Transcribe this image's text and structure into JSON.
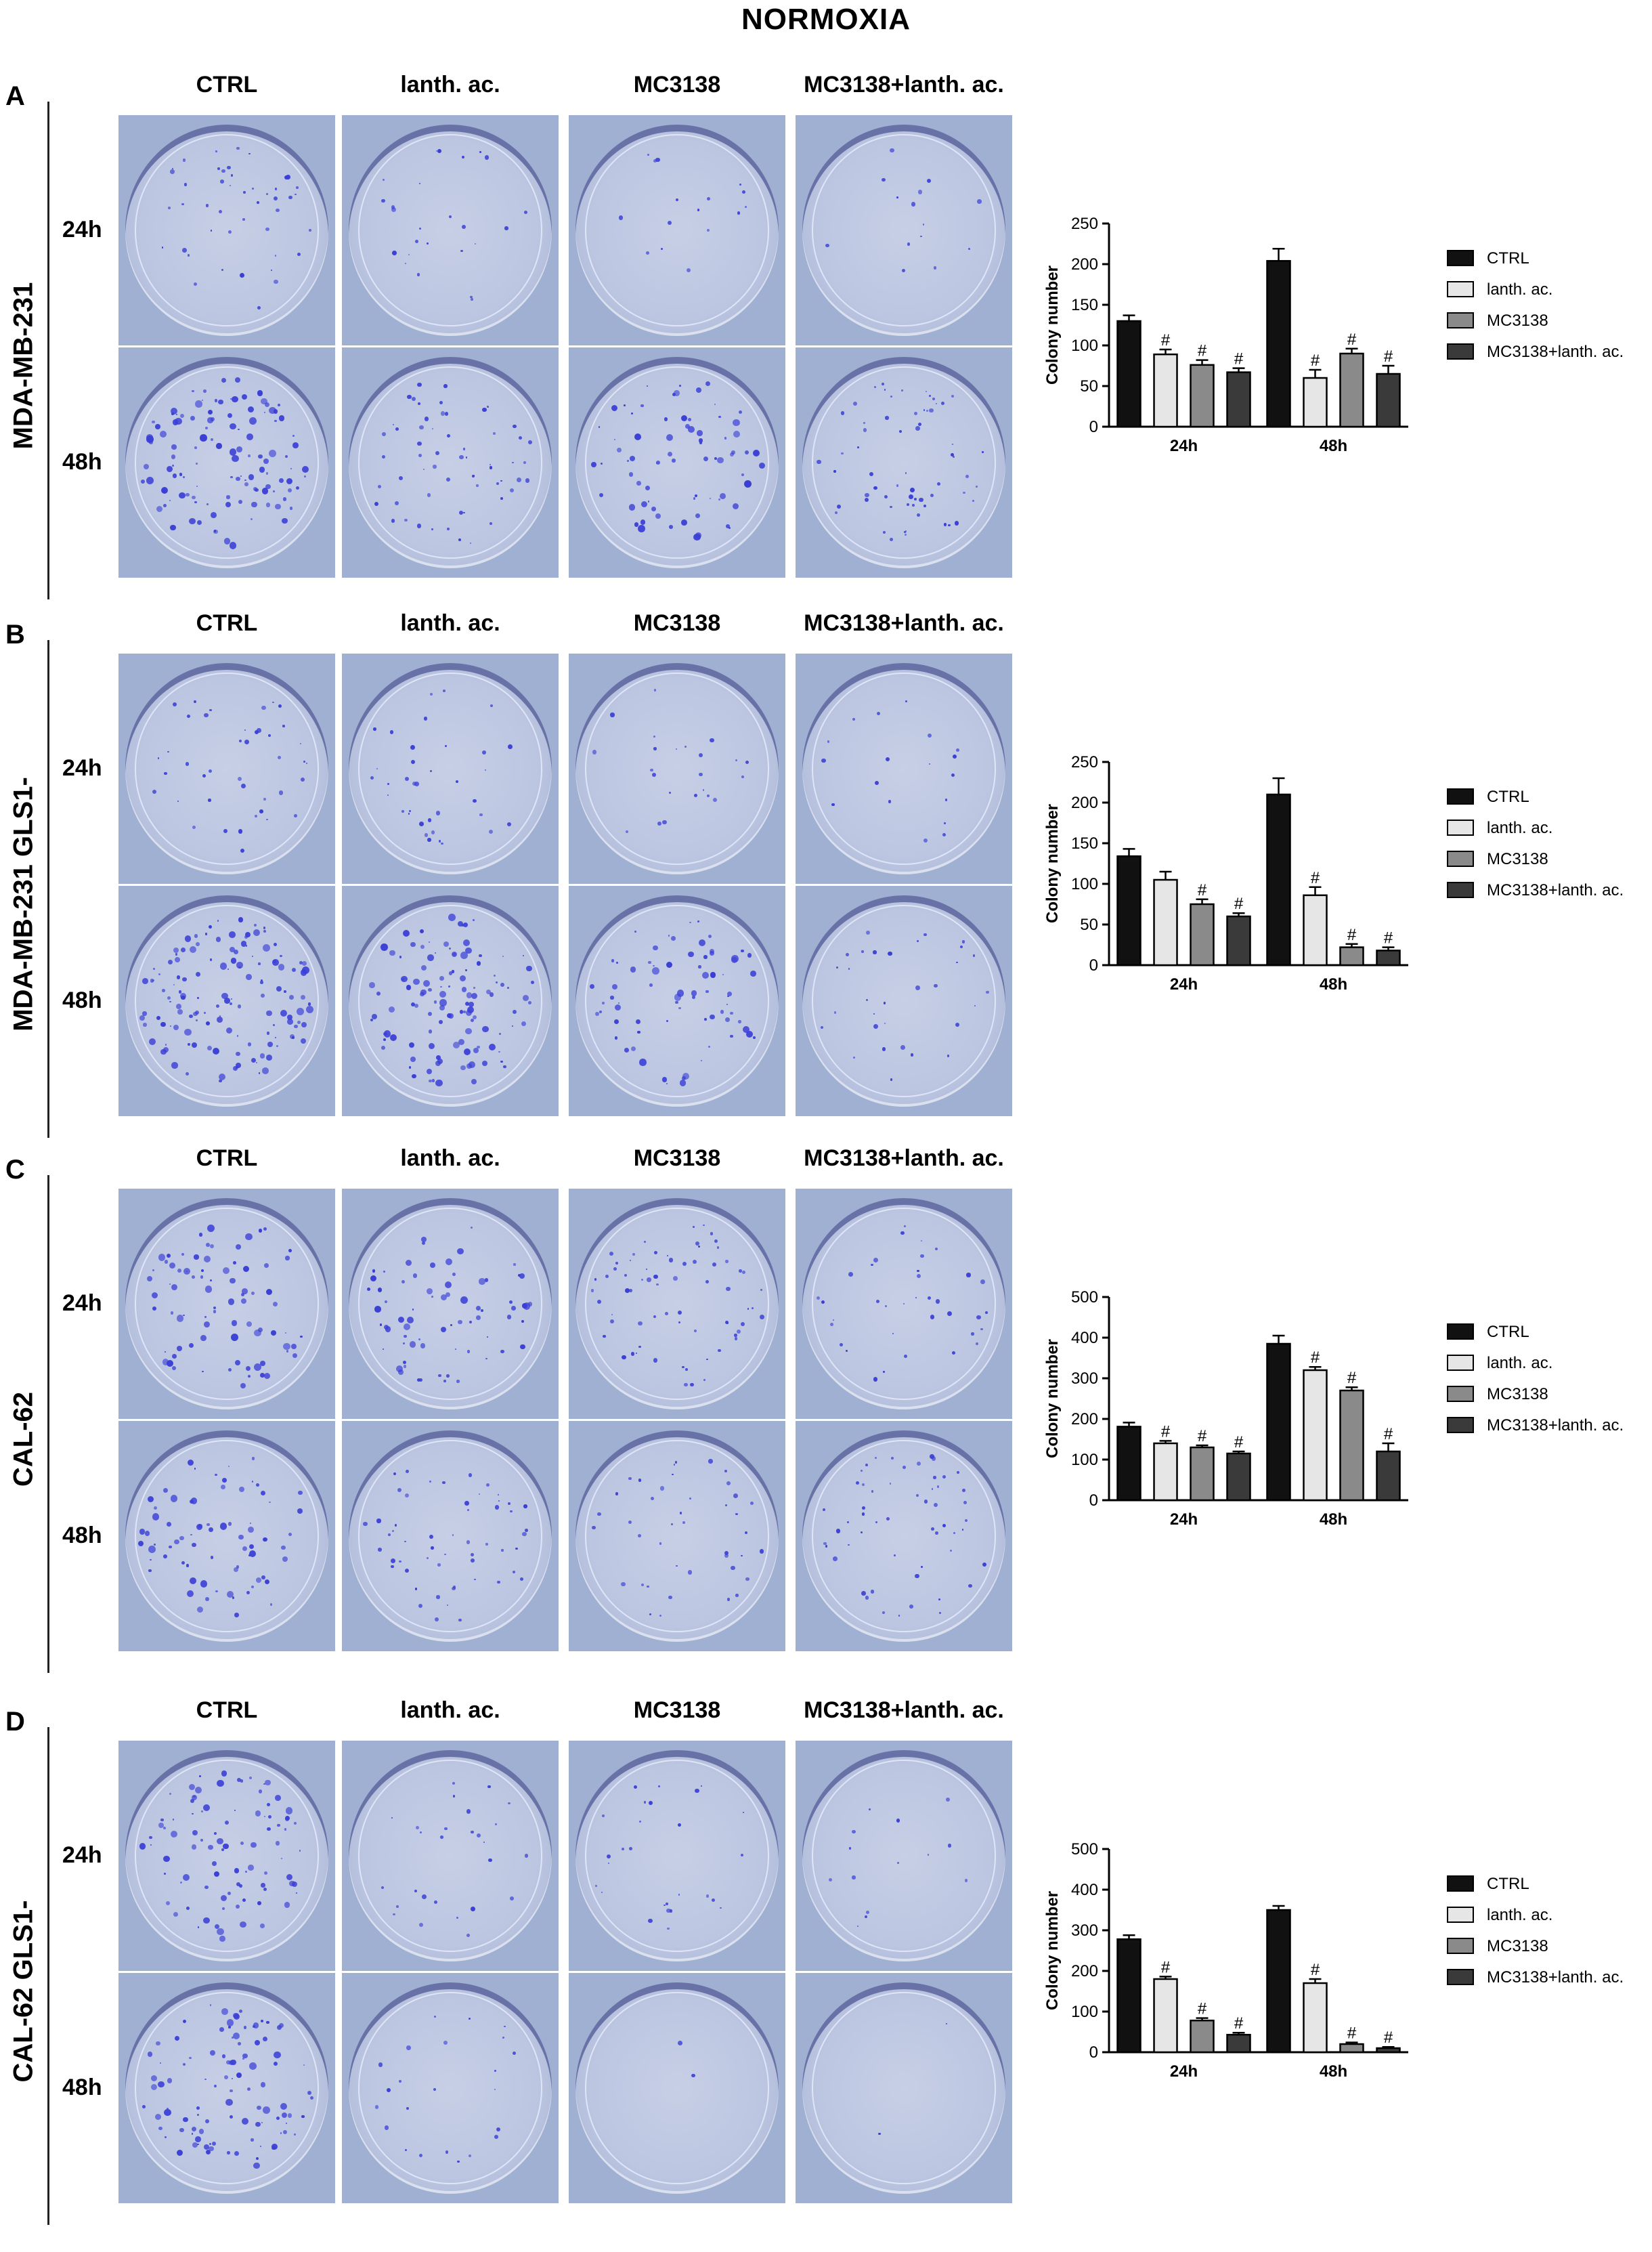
{
  "figure_title": "NORMOXIA",
  "conditions": [
    "CTRL",
    "lanth. ac.",
    "MC3138",
    "MC3138+lanth. ac."
  ],
  "timepoints": [
    "24h",
    "48h"
  ],
  "series_colors": [
    "#111111",
    "#e6e6e6",
    "#8a8a8a",
    "#3a3a3a"
  ],
  "panels": [
    {
      "letter": "A",
      "cell_line": "MDA-MB-231",
      "density": [
        [
          1.0,
          0.55,
          0.35,
          0.3
        ],
        [
          2.6,
          1.3,
          1.6,
          1.4
        ]
      ]
    },
    {
      "letter": "B",
      "cell_line": "MDA-MB-231 GLS1-",
      "density": [
        [
          0.9,
          0.8,
          0.5,
          0.4
        ],
        [
          3.0,
          2.6,
          1.6,
          0.7
        ]
      ]
    },
    {
      "letter": "C",
      "cell_line": "CAL-62",
      "density": [
        [
          1.8,
          1.6,
          1.5,
          0.8
        ],
        [
          1.6,
          1.2,
          0.9,
          1.2
        ]
      ]
    },
    {
      "letter": "D",
      "cell_line": "CAL-62 GLS1-",
      "density": [
        [
          2.0,
          0.6,
          0.6,
          0.3
        ],
        [
          2.2,
          0.5,
          0.05,
          0.05
        ]
      ]
    }
  ],
  "chart_data": [
    {
      "type": "bar",
      "categories": [
        "24h",
        "48h"
      ],
      "ylabel": "Colony number",
      "ylim": [
        0,
        250
      ],
      "yticks": [
        0,
        50,
        100,
        150,
        200,
        250
      ],
      "series": [
        {
          "name": "CTRL",
          "values": [
            130,
            204
          ],
          "errors": [
            7,
            15
          ],
          "sig": [
            "",
            ""
          ]
        },
        {
          "name": "lanth. ac.",
          "values": [
            89,
            60
          ],
          "errors": [
            6,
            10
          ],
          "sig": [
            "#",
            "#"
          ]
        },
        {
          "name": "MC3138",
          "values": [
            76,
            90
          ],
          "errors": [
            6,
            6
          ],
          "sig": [
            "#",
            "#"
          ]
        },
        {
          "name": "MC3138+lanth. ac.",
          "values": [
            67,
            65
          ],
          "errors": [
            5,
            10
          ],
          "sig": [
            "#",
            "#"
          ]
        }
      ],
      "legend": "right"
    },
    {
      "type": "bar",
      "categories": [
        "24h",
        "48h"
      ],
      "ylabel": "Colony number",
      "ylim": [
        0,
        250
      ],
      "yticks": [
        0,
        50,
        100,
        150,
        200,
        250
      ],
      "series": [
        {
          "name": "CTRL",
          "values": [
            134,
            210
          ],
          "errors": [
            9,
            20
          ],
          "sig": [
            "",
            ""
          ]
        },
        {
          "name": "lanth. ac.",
          "values": [
            105,
            86
          ],
          "errors": [
            10,
            10
          ],
          "sig": [
            "",
            "#"
          ]
        },
        {
          "name": "MC3138",
          "values": [
            75,
            22
          ],
          "errors": [
            6,
            4
          ],
          "sig": [
            "#",
            "#"
          ]
        },
        {
          "name": "MC3138+lanth. ac.",
          "values": [
            60,
            18
          ],
          "errors": [
            4,
            4
          ],
          "sig": [
            "#",
            "#"
          ]
        }
      ],
      "legend": "right"
    },
    {
      "type": "bar",
      "categories": [
        "24h",
        "48h"
      ],
      "ylabel": "Colony number",
      "ylim": [
        0,
        500
      ],
      "yticks": [
        0,
        100,
        200,
        300,
        400,
        500
      ],
      "series": [
        {
          "name": "CTRL",
          "values": [
            181,
            385
          ],
          "errors": [
            10,
            20
          ],
          "sig": [
            "",
            ""
          ]
        },
        {
          "name": "lanth. ac.",
          "values": [
            140,
            320
          ],
          "errors": [
            6,
            8
          ],
          "sig": [
            "#",
            "#"
          ]
        },
        {
          "name": "MC3138",
          "values": [
            130,
            270
          ],
          "errors": [
            5,
            8
          ],
          "sig": [
            "#",
            "#"
          ]
        },
        {
          "name": "MC3138+lanth. ac.",
          "values": [
            115,
            120
          ],
          "errors": [
            5,
            20
          ],
          "sig": [
            "#",
            "#"
          ]
        }
      ],
      "legend": "right"
    },
    {
      "type": "bar",
      "categories": [
        "24h",
        "48h"
      ],
      "ylabel": "Colony number",
      "ylim": [
        0,
        500
      ],
      "yticks": [
        0,
        100,
        200,
        300,
        400,
        500
      ],
      "series": [
        {
          "name": "CTRL",
          "values": [
            278,
            350
          ],
          "errors": [
            10,
            10
          ],
          "sig": [
            "",
            ""
          ]
        },
        {
          "name": "lanth. ac.",
          "values": [
            180,
            170
          ],
          "errors": [
            6,
            10
          ],
          "sig": [
            "#",
            "#"
          ]
        },
        {
          "name": "MC3138",
          "values": [
            78,
            20
          ],
          "errors": [
            6,
            4
          ],
          "sig": [
            "#",
            "#"
          ]
        },
        {
          "name": "MC3138+lanth. ac.",
          "values": [
            43,
            10
          ],
          "errors": [
            5,
            3
          ],
          "sig": [
            "#",
            "#"
          ]
        }
      ],
      "legend": "right"
    }
  ]
}
